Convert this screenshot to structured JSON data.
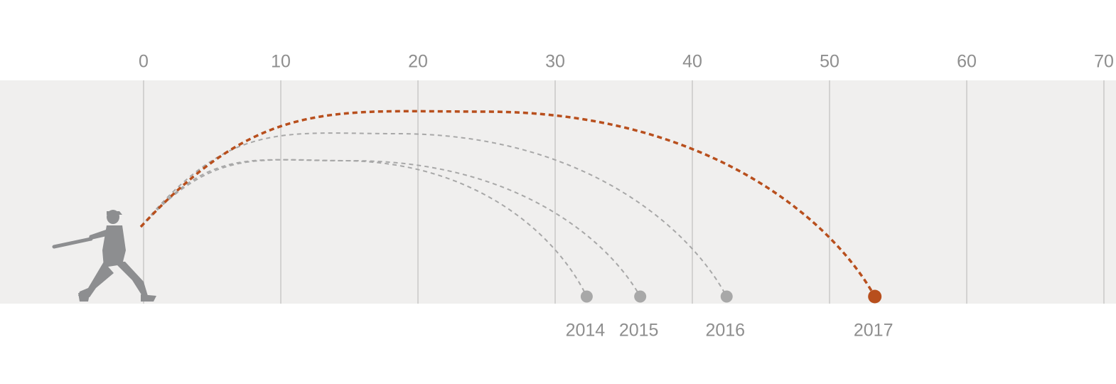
{
  "chart_data": {
    "type": "scatter",
    "title": "",
    "xlabel": "",
    "ylabel": "",
    "x_ticks": [
      0,
      10,
      20,
      30,
      40,
      50,
      60,
      70
    ],
    "xlim": [
      0,
      70
    ],
    "grid": true,
    "series": [
      {
        "name": "2014",
        "x": 32.3,
        "peak_x": 14.4,
        "highlight": false
      },
      {
        "name": "2015",
        "x": 36.2,
        "peak_x": 15.2,
        "highlight": false
      },
      {
        "name": "2016",
        "x": 42.5,
        "peak_x": 18.5,
        "highlight": false
      },
      {
        "name": "2017",
        "x": 53.3,
        "peak_x": 24.9,
        "highlight": true
      }
    ]
  },
  "colors": {
    "background": "#ffffff",
    "field": "#f0efee",
    "gridline": "#d3d2d1",
    "highlight": "#b84f1d",
    "muted": "#a8a8a8",
    "text": "#8e8e8e",
    "batter": "#8d8e90"
  },
  "icons": {
    "batter": "baseball-batter-icon"
  }
}
